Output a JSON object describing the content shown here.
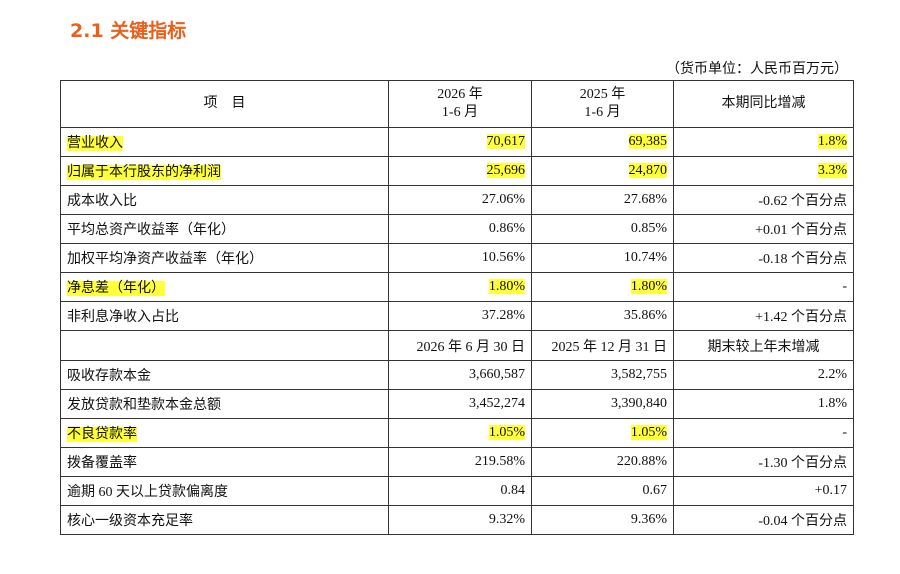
{
  "header": {
    "title": "2.1  关键指标",
    "unit_note": "（货币单位：人民币百万元）"
  },
  "table": {
    "columns": [
      [
        "项　目"
      ],
      [
        "2026 年",
        "1-6 月"
      ],
      [
        "2025 年",
        "1-6 月"
      ],
      [
        "本期同比增减"
      ]
    ],
    "rows": [
      [
        "营业收入",
        "70,617",
        "69,385",
        "1.8%"
      ],
      [
        "归属于本行股东的净利润",
        "25,696",
        "24,870",
        "3.3%"
      ],
      [
        "成本收入比",
        "27.06%",
        "27.68%",
        "-0.62 个百分点"
      ],
      [
        "平均总资产收益率（年化）",
        "0.86%",
        "0.85%",
        "+0.01 个百分点"
      ],
      [
        "加权平均净资产收益率（年化）",
        "10.56%",
        "10.74%",
        "-0.18 个百分点"
      ],
      [
        "净息差（年化）",
        "1.80%",
        "1.80%",
        "-"
      ],
      [
        "非利息净收入占比",
        "37.28%",
        "35.86%",
        "+1.42 个百分点"
      ]
    ],
    "sub_header": [
      "2026 年 6 月 30 日",
      "2025 年 12 月 31 日",
      "期末较上年末增减"
    ],
    "rows_2": [
      [
        "吸收存款本金",
        "3,660,587",
        "3,582,755",
        "2.2%"
      ],
      [
        "发放贷款和垫款本金总额",
        "3,452,274",
        "3,390,840",
        "1.8%"
      ],
      [
        "不良贷款率",
        "1.05%",
        "1.05%",
        "-"
      ],
      [
        "拨备覆盖率",
        "219.58%",
        "220.88%",
        "-1.30 个百分点"
      ],
      [
        "逾期 60 天以上贷款偏离度",
        "0.84",
        "0.67",
        "+0.17"
      ],
      [
        "核心一级资本充足率",
        "9.32%",
        "9.36%",
        "-0.04 个百分点"
      ]
    ]
  }
}
